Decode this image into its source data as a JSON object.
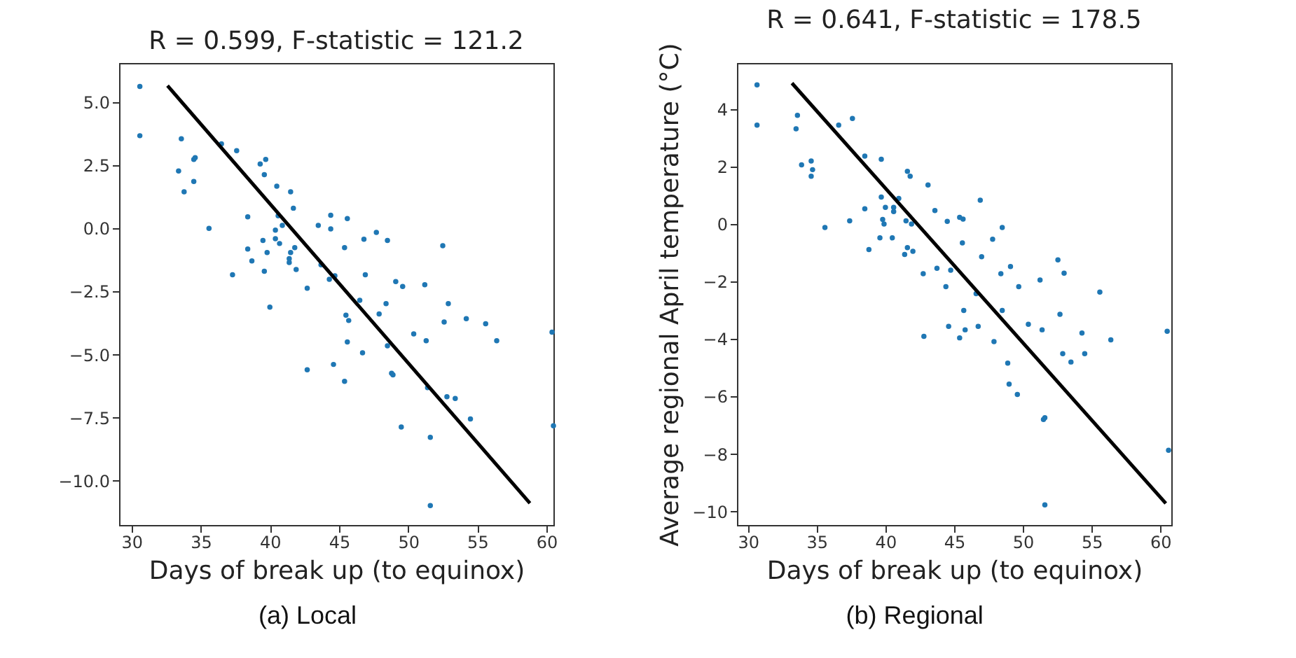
{
  "chart_data": [
    {
      "type": "scatter",
      "title": "R = 0.599, F-statistic = 121.2",
      "xlabel": "Days of break up (to equinox)",
      "annotations": [
        "(a) Local"
      ],
      "xlim": [
        29.1,
        60.5
      ],
      "ylim": [
        -11.75,
        6.55
      ],
      "xticks": [
        30,
        35,
        40,
        45,
        50,
        55,
        60
      ],
      "yticks": [
        {
          "value": 5,
          "label": "5.0"
        },
        {
          "value": 2.5,
          "label": "2.5"
        },
        {
          "value": 0,
          "label": "0.0"
        },
        {
          "value": -2.5,
          "label": "−2.5"
        },
        {
          "value": -5,
          "label": "−5.0"
        },
        {
          "value": -7.5,
          "label": "−7.5"
        },
        {
          "value": -10,
          "label": "−10.0"
        }
      ],
      "series": [
        {
          "marker": "circle",
          "color": "#1f77b4",
          "x": [
            30.6,
            30.6,
            33.6,
            33.4,
            33.8,
            34.5,
            34.6,
            34.5,
            35.6,
            36.5,
            37.6,
            38.4,
            38.4,
            38.7,
            37.3,
            39.3,
            39.7,
            39.6,
            39.5,
            39.8,
            39.6,
            40.0,
            40.5,
            40.6,
            40.4,
            40.4,
            40.7,
            40.9,
            41.5,
            41.7,
            41.5,
            41.4,
            41.4,
            41.8,
            41.9,
            42.7,
            43.5,
            44.4,
            44.4,
            45.6,
            45.4,
            43.7,
            44.3,
            44.7,
            42.7,
            44.6,
            45.4,
            45.5,
            45.7,
            45.6,
            46.8,
            47.7,
            48.5,
            46.9,
            46.5,
            46.7,
            47.9,
            48.4,
            48.5,
            49.1,
            49.6,
            48.8,
            48.9,
            50.4,
            49.5,
            51.2,
            51.3,
            52.5,
            52.9,
            52.6,
            51.4,
            52.8,
            53.4,
            54.5,
            51.6,
            51.6,
            54.2,
            55.6,
            56.4,
            60.4,
            60.5
          ],
          "values": [
            5.62,
            3.67,
            3.55,
            2.27,
            1.45,
            2.73,
            2.8,
            1.86,
            0,
            3.35,
            3.08,
            0.46,
            -0.82,
            -1.29,
            -1.84,
            2.55,
            2.73,
            2.13,
            -0.48,
            -0.96,
            -1.7,
            -3.12,
            1.67,
            0.5,
            -0.07,
            -0.41,
            -0.6,
            0.12,
            1.45,
            0.8,
            -0.96,
            -1.2,
            -1.35,
            -0.76,
            -1.63,
            -2.37,
            0.12,
            0.52,
            -0.02,
            0.39,
            -0.76,
            -1.44,
            -2.02,
            -1.88,
            -5.6,
            -5.39,
            -6.06,
            -3.44,
            -3.65,
            -4.5,
            -0.43,
            -0.16,
            -0.48,
            -1.84,
            -2.85,
            -4.93,
            -3.39,
            -2.98,
            -4.65,
            -2.11,
            -2.3,
            -5.74,
            -5.8,
            -4.18,
            -7.87,
            -2.23,
            -4.45,
            -0.69,
            -2.98,
            -3.71,
            -6.31,
            -6.67,
            -6.74,
            -7.55,
            -8.28,
            -10.98,
            -3.58,
            -3.78,
            -4.45,
            -4.11,
            -7.82
          ]
        },
        {
          "type": "line",
          "color": "#000000",
          "x": [
            32.6,
            58.8
          ],
          "values": [
            5.65,
            -10.89
          ]
        }
      ]
    },
    {
      "type": "scatter",
      "title": "R = 0.641, F-statistic = 178.5",
      "xlabel": "Days of break up (to equinox)",
      "ylabel": "Average regional April temperature (°C)",
      "annotations": [
        "(b) Regional"
      ],
      "xlim": [
        29.2,
        60.8
      ],
      "ylim": [
        -10.47,
        5.6
      ],
      "xticks": [
        30,
        35,
        40,
        45,
        50,
        55,
        60
      ],
      "yticks": [
        4,
        2,
        0,
        {
          "value": -2,
          "label": "−2"
        },
        {
          "value": -4,
          "label": "−4"
        },
        {
          "value": -6,
          "label": "−6"
        },
        {
          "value": -8,
          "label": "−8"
        },
        {
          "value": -10,
          "label": "−10"
        }
      ],
      "series": [
        {
          "marker": "circle",
          "color": "#1f77b4",
          "x": [
            30.66,
            30.66,
            33.6,
            33.5,
            33.9,
            34.6,
            34.7,
            34.6,
            35.6,
            36.6,
            37.6,
            38.5,
            38.5,
            37.4,
            38.8,
            39.7,
            39.7,
            39.8,
            39.9,
            40.0,
            39.6,
            40.5,
            40.6,
            40.6,
            40.97,
            41.6,
            41.8,
            41.5,
            41.9,
            41.6,
            41.4,
            42.0,
            42.75,
            42.8,
            43.1,
            43.6,
            43.75,
            44.5,
            44.4,
            44.75,
            44.6,
            45.4,
            45.65,
            45.6,
            45.4,
            45.7,
            45.8,
            46.6,
            46.75,
            46.9,
            47.0,
            47.8,
            47.9,
            48.4,
            48.5,
            48.5,
            49.1,
            48.9,
            49.0,
            49.6,
            49.7,
            50.4,
            51.25,
            51.4,
            51.5,
            51.6,
            51.6,
            52.55,
            53.0,
            52.7,
            52.9,
            53.5,
            54.3,
            54.5,
            55.6,
            56.4,
            60.5,
            60.6
          ],
          "values": [
            4.84,
            3.44,
            3.78,
            3.31,
            2.06,
            2.19,
            1.89,
            1.66,
            -0.12,
            3.44,
            3.67,
            2.36,
            0.53,
            0.11,
            -0.89,
            2.25,
            0.94,
            0.16,
            0,
            0.58,
            -0.48,
            -0.48,
            0.58,
            0.43,
            0.89,
            1.83,
            1.66,
            0.11,
            0,
            -0.82,
            -1.06,
            -0.95,
            -1.73,
            -3.91,
            1.36,
            0.47,
            -1.54,
            0.09,
            -2.18,
            -1.61,
            -3.56,
            0.23,
            0.17,
            -0.66,
            -3.96,
            -3.01,
            -3.68,
            -2.42,
            -3.56,
            0.83,
            -1.14,
            -0.53,
            -4.09,
            -1.73,
            -0.12,
            -3.01,
            -1.48,
            -4.84,
            -5.57,
            -5.93,
            -2.18,
            -3.49,
            -1.95,
            -3.68,
            -6.8,
            -6.74,
            -9.77,
            -1.25,
            -1.71,
            -3.14,
            -4.51,
            -4.8,
            -3.79,
            -4.51,
            -2.37,
            -4.03,
            -3.73,
            -7.87
          ]
        },
        {
          "type": "line",
          "color": "#000000",
          "x": [
            33.2,
            60.4
          ],
          "values": [
            4.9,
            -9.72
          ]
        }
      ]
    }
  ]
}
